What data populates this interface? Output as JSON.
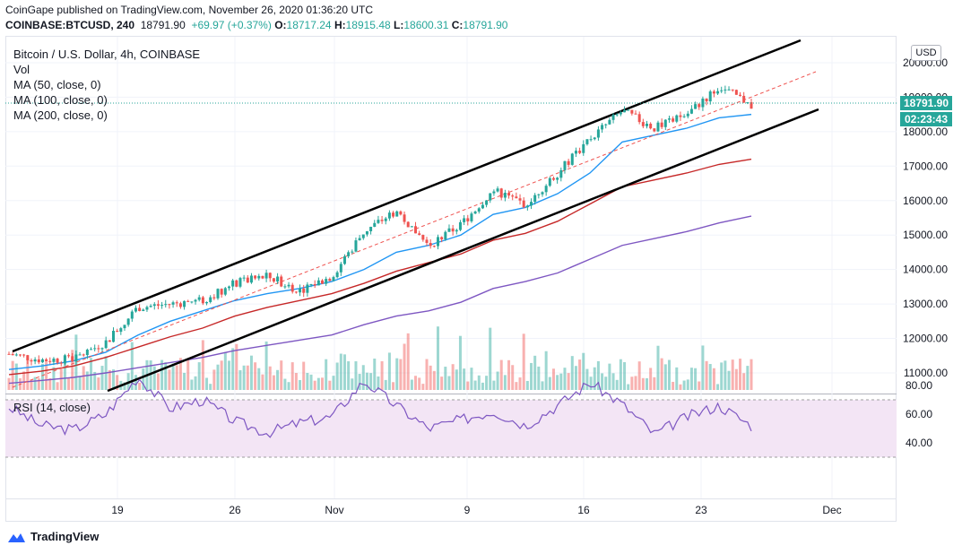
{
  "header": {
    "published": "CoinGape published on TradingView.com, November 26, 2020 01:36:20 UTC",
    "symbol": "COINBASE:BTCUSD, 240",
    "last": "18791.90",
    "change": "+69.97 (+0.37%)",
    "o_label": "O:",
    "o_value": "18717.24",
    "h_label": "H:",
    "h_value": "18915.48",
    "l_label": "L:",
    "l_value": "18600.31",
    "c_label": "C:",
    "c_value": "18791.90"
  },
  "legend": {
    "title": "Bitcoin / U.S. Dollar, 4h, COINBASE",
    "vol": "Vol",
    "ma50": "MA (50, close, 0)",
    "ma100": "MA (100, close, 0)",
    "ma200": "MA (200, close, 0)"
  },
  "price_axis": {
    "currency": "USD",
    "ticks": [
      "20000.00",
      "19000.00",
      "18000.00",
      "17000.00",
      "16000.00",
      "15000.00",
      "14000.00",
      "13000.00",
      "12000.00",
      "11000.00"
    ],
    "last_price_label": "18791.90",
    "countdown_label": "02:23:43"
  },
  "rsi": {
    "label": "RSI (14, close)",
    "ticks": [
      "80.00",
      "60.00",
      "40.00"
    ]
  },
  "time_axis": {
    "ticks": [
      "19",
      "26",
      "Nov",
      "9",
      "16",
      "23",
      "Dec"
    ]
  },
  "footer": {
    "brand": "TradingView"
  },
  "colors": {
    "up": "#26a69a",
    "down": "#ef5350",
    "ma50": "#2196f3",
    "ma100": "#c62828",
    "ma200": "#7e57c2",
    "rsi_line": "#7e57c2",
    "rsi_band": "#f3e5f5",
    "channel": "#000000"
  },
  "chart_data": {
    "type": "candlestick",
    "title": "Bitcoin / U.S. Dollar, 4h, COINBASE",
    "ylim": [
      10500,
      20500
    ],
    "close_series": {
      "name": "BTCUSD",
      "dates": [
        "2020-10-12",
        "2020-10-15",
        "2020-10-18",
        "2020-10-20",
        "2020-10-21",
        "2020-10-23",
        "2020-10-26",
        "2020-10-28",
        "2020-10-30",
        "2020-11-02",
        "2020-11-04",
        "2020-11-05",
        "2020-11-06",
        "2020-11-08",
        "2020-11-10",
        "2020-11-13",
        "2020-11-15",
        "2020-11-17",
        "2020-11-18",
        "2020-11-21",
        "2020-11-22",
        "2020-11-23",
        "2020-11-24",
        "2020-11-25"
      ],
      "values": [
        11550,
        11380,
        11400,
        11900,
        12900,
        13000,
        13100,
        13600,
        13800,
        13400,
        13800,
        15100,
        15700,
        14700,
        15300,
        16300,
        15900,
        16800,
        17800,
        18600,
        18100,
        18500,
        19300,
        18792
      ]
    },
    "ma_series": [
      {
        "name": "MA (50, close, 0)",
        "values": [
          11100,
          11200,
          11350,
          11600,
          12100,
          12500,
          12800,
          13100,
          13300,
          13450,
          13650,
          14000,
          14500,
          14700,
          15000,
          15600,
          15800,
          16200,
          16800,
          17700,
          17900,
          18100,
          18400,
          18500
        ]
      },
      {
        "name": "MA (100, close, 0)",
        "values": [
          10950,
          11050,
          11200,
          11450,
          11750,
          12050,
          12300,
          12650,
          12900,
          13100,
          13300,
          13600,
          13950,
          14200,
          14450,
          14850,
          15050,
          15400,
          15900,
          16400,
          16600,
          16800,
          17050,
          17200
        ]
      },
      {
        "name": "MA (200, close, 0)",
        "values": [
          10700,
          10780,
          10870,
          11000,
          11150,
          11300,
          11450,
          11650,
          11800,
          11950,
          12100,
          12400,
          12650,
          12800,
          13050,
          13450,
          13650,
          13900,
          14300,
          14700,
          14900,
          15100,
          15350,
          15550
        ]
      }
    ],
    "rsi": {
      "name": "RSI (14, close)",
      "ylim": [
        20,
        90
      ],
      "values": [
        65,
        52,
        49,
        60,
        86,
        64,
        70,
        55,
        47,
        54,
        58,
        83,
        66,
        50,
        56,
        62,
        52,
        66,
        82,
        67,
        46,
        58,
        66,
        52
      ]
    },
    "channel": "ascending channel with dashed mid-line"
  }
}
